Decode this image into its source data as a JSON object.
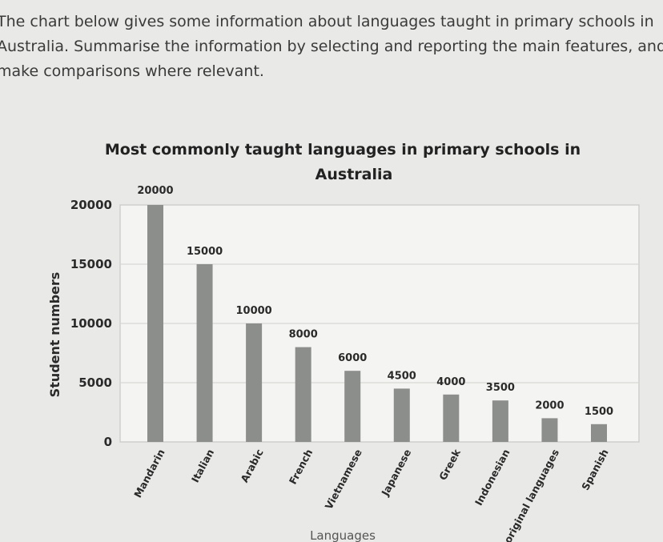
{
  "prompt": "The chart below gives some information about languages taught in primary schools in Australia. Summarise the information by selecting and reporting the main features, and make comparisons where relevant.",
  "chart_data": {
    "type": "bar",
    "title": "Most commonly taught languages in primary schools in Australia",
    "xlabel": "Languages",
    "ylabel": "Student numbers",
    "ylim": [
      0,
      20000
    ],
    "yticks": [
      "0",
      "5000",
      "10000",
      "15000",
      "20000"
    ],
    "grid": true,
    "legend": "none",
    "bar_color": "#8c8e8c",
    "categories": [
      "Mandarin",
      "Italian",
      "Arabic",
      "French",
      "Vietnamese",
      "Japanese",
      "Greek",
      "Indonesian",
      "Aboriginal languages",
      "Spanish"
    ],
    "values": [
      20000,
      15000,
      10000,
      8000,
      6000,
      4500,
      4000,
      3500,
      2000,
      1500
    ],
    "data_labels": [
      "20000",
      "15000",
      "10000",
      "8000",
      "6000",
      "4500",
      "4000",
      "3500",
      "2000",
      "1500"
    ]
  }
}
